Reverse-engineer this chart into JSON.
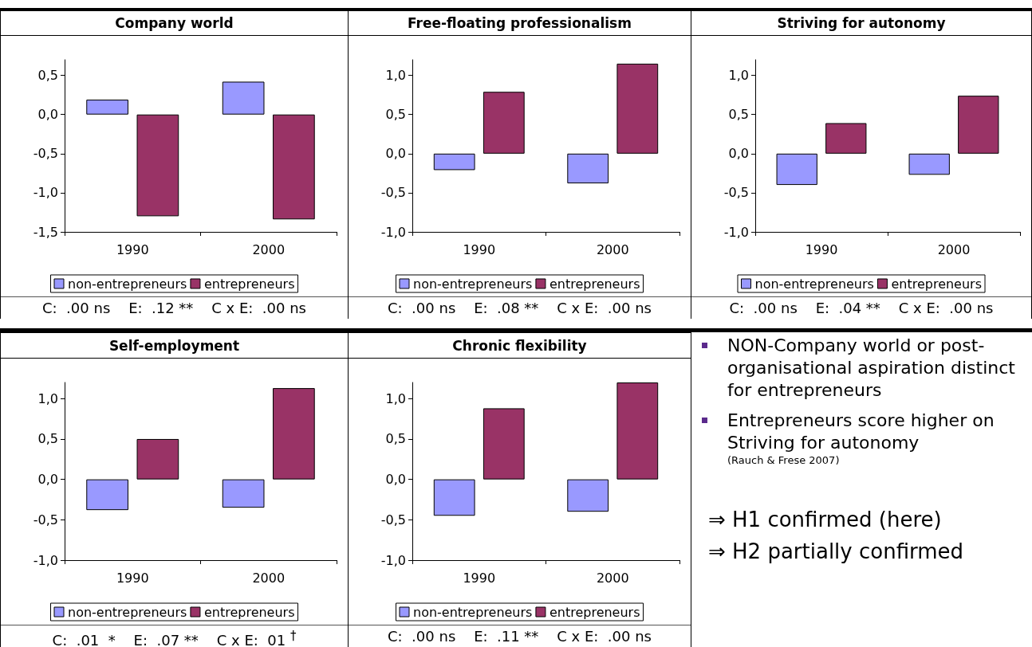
{
  "chart_data": [
    {
      "type": "bar",
      "title": "Company world",
      "categories": [
        "1990",
        "2000"
      ],
      "series": [
        {
          "name": "non-entrepreneurs",
          "color": "#9999ff",
          "values": [
            0.19,
            0.42
          ]
        },
        {
          "name": "entrepreneurs",
          "color": "#993366",
          "values": [
            -1.3,
            -1.34
          ]
        }
      ],
      "ylim": [
        -1.5,
        0.7
      ],
      "yticks": [
        {
          "value": -1.5,
          "label": "-1,5"
        },
        {
          "value": -1,
          "label": "-1,0"
        },
        {
          "value": -0.5,
          "label": "-0,5"
        },
        {
          "value": 0,
          "label": "0,0"
        },
        {
          "value": 0.5,
          "label": "0,5"
        }
      ],
      "legend": "bottom",
      "grid": false,
      "annotations": [
        "C:  .00 ns    E:  .12 **    C x E:  .00 ns"
      ]
    },
    {
      "type": "bar",
      "title": "Free-floating professionalism",
      "categories": [
        "1990",
        "2000"
      ],
      "series": [
        {
          "name": "non-entrepreneurs",
          "color": "#9999ff",
          "values": [
            -0.21,
            -0.38
          ]
        },
        {
          "name": "entrepreneurs",
          "color": "#993366",
          "values": [
            0.79,
            1.15
          ]
        }
      ],
      "ylim": [
        -1,
        1.2
      ],
      "yticks": [
        {
          "value": -1,
          "label": "-1,0"
        },
        {
          "value": -0.5,
          "label": "-0,5"
        },
        {
          "value": 0,
          "label": "0,0"
        },
        {
          "value": 0.5,
          "label": "0,5"
        },
        {
          "value": 1,
          "label": "1,0"
        }
      ],
      "legend": "bottom",
      "grid": false,
      "annotations": [
        "C:  .00 ns    E:  .08 **    C x E:  .00 ns"
      ]
    },
    {
      "type": "bar",
      "title": "Striving for autonomy",
      "categories": [
        "1990",
        "2000"
      ],
      "series": [
        {
          "name": "non-entrepreneurs",
          "color": "#9999ff",
          "values": [
            -0.4,
            -0.27
          ]
        },
        {
          "name": "entrepreneurs",
          "color": "#993366",
          "values": [
            0.39,
            0.74
          ]
        }
      ],
      "ylim": [
        -1,
        1.2
      ],
      "yticks": [
        {
          "value": -1,
          "label": "-1,0"
        },
        {
          "value": -0.5,
          "label": "-0,5"
        },
        {
          "value": 0,
          "label": "0,0"
        },
        {
          "value": 0.5,
          "label": "0,5"
        },
        {
          "value": 1,
          "label": "1,0"
        }
      ],
      "legend": "bottom",
      "grid": false,
      "annotations": [
        "C:  .00 ns    E:  .04 **    C x E:  .00 ns"
      ]
    },
    {
      "type": "bar",
      "title": "Self-employment",
      "categories": [
        "1990",
        "2000"
      ],
      "series": [
        {
          "name": "non-entrepreneurs",
          "color": "#9999ff",
          "values": [
            -0.38,
            -0.35
          ]
        },
        {
          "name": "entrepreneurs",
          "color": "#993366",
          "values": [
            0.5,
            1.13
          ]
        }
      ],
      "ylim": [
        -1,
        1.2
      ],
      "yticks": [
        {
          "value": -1,
          "label": "-1,0"
        },
        {
          "value": -0.5,
          "label": "-0,5"
        },
        {
          "value": 0,
          "label": "0,0"
        },
        {
          "value": 0.5,
          "label": "0,5"
        },
        {
          "value": 1,
          "label": "1,0"
        }
      ],
      "legend": "bottom",
      "grid": false,
      "annotations": [
        "C:  .01  *    E:  .07 **    C x E:  01 $^{†}$"
      ]
    },
    {
      "type": "bar",
      "title": "Chronic flexibility",
      "categories": [
        "1990",
        "2000"
      ],
      "series": [
        {
          "name": "non-entrepreneurs",
          "color": "#9999ff",
          "values": [
            -0.45,
            -0.4
          ]
        },
        {
          "name": "entrepreneurs",
          "color": "#993366",
          "values": [
            0.88,
            1.2
          ]
        }
      ],
      "ylim": [
        -1,
        1.2
      ],
      "yticks": [
        {
          "value": -1,
          "label": "-1,0"
        },
        {
          "value": -0.5,
          "label": "-0,5"
        },
        {
          "value": 0,
          "label": "0,0"
        },
        {
          "value": 0.5,
          "label": "0,5"
        },
        {
          "value": 1,
          "label": "1,0"
        }
      ],
      "legend": "bottom",
      "grid": false,
      "annotations": [
        "C:  .00 ns    E:  .11 **    C x E:  .00 ns"
      ]
    },
    {
      "type": "other",
      "annotations": [
        "NON-Company world or post-organisational aspiration distinct for entrepreneurs",
        "Entrepreneurs score higher on Striving for autonomy",
        "(Rauch & Frese 2007)",
        "⇒ H1 confirmed (here)",
        "⇒ H2 partially confirmed"
      ]
    }
  ]
}
